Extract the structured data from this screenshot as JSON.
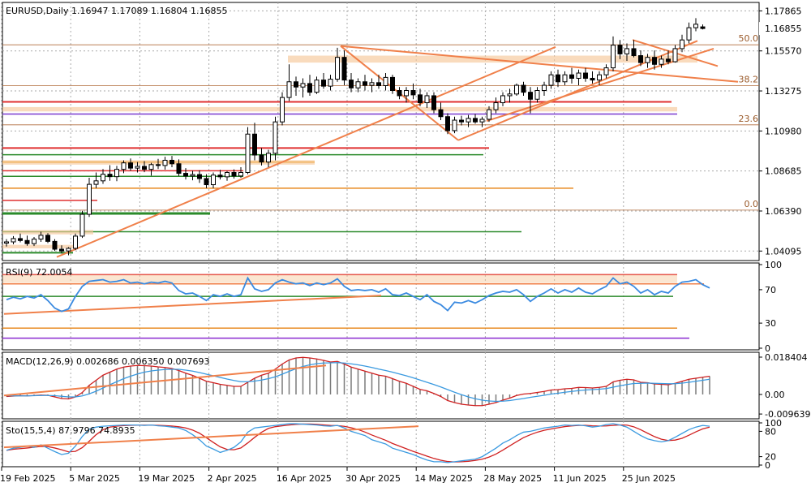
{
  "header": {
    "symbol": "EURUSD,Daily",
    "ohlc": "1.16947 1.17089 1.16804 1.16855"
  },
  "chart_data": {
    "type": "candlestick",
    "price_axis_labels": [
      "1.17865",
      "1.15570",
      "1.13275",
      "1.10980",
      "1.08685",
      "1.06390",
      "1.04095"
    ],
    "current_price_label": "1.16855",
    "fib_labels": [
      "50.0",
      "38.2",
      "23.6",
      "0.0"
    ],
    "x_axis_labels": [
      "19 Feb 2025",
      "5 Mar 2025",
      "19 Mar 2025",
      "2 Apr 2025",
      "16 Apr 2025",
      "30 Apr 2025",
      "14 May 2025",
      "28 May 2025",
      "11 Jun 2025",
      "25 Jun 2025"
    ],
    "candles": [
      [
        1.0455,
        1.0478,
        1.0435,
        1.0462
      ],
      [
        1.0462,
        1.0495,
        1.0448,
        1.0481
      ],
      [
        1.0481,
        1.051,
        1.046,
        1.047
      ],
      [
        1.047,
        1.0498,
        1.044,
        1.0452
      ],
      [
        1.0452,
        1.049,
        1.0438,
        1.0478
      ],
      [
        1.0478,
        1.052,
        1.0462,
        1.05
      ],
      [
        1.05,
        1.0512,
        1.0455,
        1.0465
      ],
      [
        1.0465,
        1.0478,
        1.041,
        1.042
      ],
      [
        1.042,
        1.0442,
        1.0395,
        1.041
      ],
      [
        1.041,
        1.0432,
        1.0385,
        1.0425
      ],
      [
        1.0425,
        1.051,
        1.0415,
        1.0495
      ],
      [
        1.0495,
        1.064,
        1.0485,
        1.062
      ],
      [
        1.062,
        1.083,
        1.0605,
        1.0792
      ],
      [
        1.0792,
        1.086,
        1.077,
        1.0812
      ],
      [
        1.0812,
        1.088,
        1.0795,
        1.085
      ],
      [
        1.085,
        1.0902,
        1.0812,
        1.0836
      ],
      [
        1.0836,
        1.0898,
        1.081,
        1.0878
      ],
      [
        1.0878,
        1.093,
        1.0856,
        1.0915
      ],
      [
        1.0915,
        1.094,
        1.087,
        1.0885
      ],
      [
        1.0885,
        1.092,
        1.086,
        1.0895
      ],
      [
        1.0895,
        1.0925,
        1.0862,
        1.0878
      ],
      [
        1.0878,
        1.0915,
        1.0842,
        1.0905
      ],
      [
        1.0905,
        1.0938,
        1.088,
        1.09
      ],
      [
        1.09,
        1.095,
        1.0876,
        1.093
      ],
      [
        1.093,
        1.0955,
        1.089,
        1.091
      ],
      [
        1.091,
        1.0935,
        1.084,
        1.0855
      ],
      [
        1.0855,
        1.0885,
        1.082,
        1.084
      ],
      [
        1.084,
        1.087,
        1.0815,
        1.0848
      ],
      [
        1.0848,
        1.0872,
        1.08,
        1.0825
      ],
      [
        1.0825,
        1.085,
        1.077,
        1.079
      ],
      [
        1.079,
        1.086,
        1.077,
        1.0845
      ],
      [
        1.0845,
        1.0875,
        1.082,
        1.0835
      ],
      [
        1.0835,
        1.0868,
        1.0812,
        1.086
      ],
      [
        1.086,
        1.0878,
        1.0825,
        1.084
      ],
      [
        1.084,
        1.089,
        1.083,
        1.086
      ],
      [
        1.086,
        1.112,
        1.085,
        1.108
      ],
      [
        1.108,
        1.1145,
        1.093,
        1.096
      ],
      [
        1.096,
        1.1,
        1.09,
        1.092
      ],
      [
        1.092,
        1.099,
        1.089,
        1.097
      ],
      [
        1.097,
        1.118,
        1.093,
        1.115
      ],
      [
        1.115,
        1.132,
        1.113,
        1.129
      ],
      [
        1.129,
        1.148,
        1.127,
        1.138
      ],
      [
        1.138,
        1.141,
        1.13,
        1.135
      ],
      [
        1.135,
        1.14,
        1.129,
        1.137
      ],
      [
        1.137,
        1.142,
        1.13,
        1.132
      ],
      [
        1.132,
        1.141,
        1.131,
        1.139
      ],
      [
        1.139,
        1.143,
        1.134,
        1.1355
      ],
      [
        1.1355,
        1.142,
        1.133,
        1.1395
      ],
      [
        1.1395,
        1.1575,
        1.138,
        1.152
      ],
      [
        1.152,
        1.156,
        1.136,
        1.139
      ],
      [
        1.139,
        1.143,
        1.132,
        1.1345
      ],
      [
        1.1345,
        1.14,
        1.132,
        1.138
      ],
      [
        1.138,
        1.142,
        1.133,
        1.136
      ],
      [
        1.136,
        1.14,
        1.132,
        1.1375
      ],
      [
        1.1375,
        1.142,
        1.134,
        1.1358
      ],
      [
        1.1358,
        1.143,
        1.133,
        1.1405
      ],
      [
        1.1405,
        1.142,
        1.131,
        1.133
      ],
      [
        1.133,
        1.135,
        1.128,
        1.13
      ],
      [
        1.13,
        1.135,
        1.126,
        1.133
      ],
      [
        1.133,
        1.137,
        1.128,
        1.1305
      ],
      [
        1.1305,
        1.134,
        1.124,
        1.126
      ],
      [
        1.126,
        1.132,
        1.123,
        1.13
      ],
      [
        1.13,
        1.132,
        1.12,
        1.122
      ],
      [
        1.122,
        1.126,
        1.116,
        1.118
      ],
      [
        1.118,
        1.12,
        1.108,
        1.11
      ],
      [
        1.11,
        1.118,
        1.1085,
        1.116
      ],
      [
        1.116,
        1.1185,
        1.113,
        1.115
      ],
      [
        1.115,
        1.119,
        1.112,
        1.117
      ],
      [
        1.117,
        1.1195,
        1.114,
        1.115
      ],
      [
        1.115,
        1.118,
        1.112,
        1.1165
      ],
      [
        1.1165,
        1.124,
        1.115,
        1.122
      ],
      [
        1.122,
        1.129,
        1.12,
        1.126
      ],
      [
        1.126,
        1.132,
        1.124,
        1.13
      ],
      [
        1.13,
        1.134,
        1.126,
        1.131
      ],
      [
        1.131,
        1.137,
        1.13,
        1.136
      ],
      [
        1.136,
        1.138,
        1.13,
        1.132
      ],
      [
        1.132,
        1.135,
        1.12,
        1.128
      ],
      [
        1.128,
        1.135,
        1.126,
        1.133
      ],
      [
        1.133,
        1.138,
        1.13,
        1.136
      ],
      [
        1.136,
        1.144,
        1.134,
        1.142
      ],
      [
        1.142,
        1.145,
        1.135,
        1.138
      ],
      [
        1.138,
        1.144,
        1.136,
        1.142
      ],
      [
        1.142,
        1.146,
        1.137,
        1.14
      ],
      [
        1.14,
        1.145,
        1.136,
        1.143
      ],
      [
        1.143,
        1.146,
        1.138,
        1.14
      ],
      [
        1.14,
        1.144,
        1.137,
        1.139
      ],
      [
        1.139,
        1.144,
        1.136,
        1.142
      ],
      [
        1.142,
        1.148,
        1.14,
        1.146
      ],
      [
        1.146,
        1.164,
        1.144,
        1.159
      ],
      [
        1.159,
        1.162,
        1.151,
        1.154
      ],
      [
        1.154,
        1.16,
        1.15,
        1.157
      ],
      [
        1.157,
        1.162,
        1.152,
        1.153
      ],
      [
        1.153,
        1.156,
        1.147,
        1.149
      ],
      [
        1.149,
        1.154,
        1.146,
        1.152
      ],
      [
        1.152,
        1.156,
        1.145,
        1.148
      ],
      [
        1.148,
        1.153,
        1.146,
        1.151
      ],
      [
        1.151,
        1.156,
        1.148,
        1.1495
      ],
      [
        1.1495,
        1.159,
        1.149,
        1.157
      ],
      [
        1.157,
        1.165,
        1.155,
        1.162
      ],
      [
        1.162,
        1.172,
        1.16,
        1.169
      ],
      [
        1.169,
        1.1745,
        1.167,
        1.171
      ],
      [
        1.1695,
        1.1709,
        1.168,
        1.16855
      ]
    ],
    "rsi": {
      "label": "RSI(9) 72.0054",
      "axis_labels": [
        "100",
        "70",
        "30",
        "0"
      ],
      "levels": [
        100,
        70,
        30,
        0
      ],
      "values": [
        58,
        61,
        59,
        62,
        60,
        64,
        57,
        48,
        44,
        47,
        62,
        74,
        80,
        81,
        82,
        79,
        80,
        82,
        78,
        79,
        77,
        79,
        78,
        80,
        78,
        69,
        65,
        66,
        62,
        57,
        64,
        62,
        65,
        62,
        64,
        84,
        71,
        68,
        70,
        78,
        82,
        79,
        77,
        78,
        75,
        78,
        76,
        78,
        83,
        74,
        69,
        70,
        69,
        70,
        67,
        71,
        64,
        63,
        66,
        62,
        58,
        64,
        56,
        52,
        45,
        55,
        54,
        57,
        54,
        58,
        63,
        66,
        68,
        67,
        70,
        64,
        56,
        62,
        66,
        71,
        66,
        70,
        67,
        72,
        67,
        65,
        70,
        74,
        84,
        77,
        79,
        74,
        66,
        70,
        64,
        68,
        66,
        74,
        79,
        80,
        82,
        76,
        72
      ]
    },
    "macd": {
      "label": "MACD(12,26,9) 0.002686 0.006350 0.007693",
      "axis_labels": [
        "0.018404",
        "0.00",
        "-0.009639"
      ],
      "ylim": [
        -0.0112,
        0.02
      ],
      "main": [
        -0.001,
        -0.0008,
        -0.0006,
        -0.0007,
        -0.0005,
        -0.0003,
        -0.0004,
        -0.0012,
        -0.002,
        -0.0022,
        -0.0012,
        0.001,
        0.0045,
        0.007,
        0.0095,
        0.011,
        0.0125,
        0.0135,
        0.014,
        0.0143,
        0.0142,
        0.014,
        0.0136,
        0.0133,
        0.0128,
        0.0118,
        0.0105,
        0.0094,
        0.008,
        0.0065,
        0.0058,
        0.005,
        0.0045,
        0.004,
        0.004,
        0.006,
        0.008,
        0.0095,
        0.0105,
        0.0125,
        0.015,
        0.017,
        0.018,
        0.0183,
        0.018,
        0.0175,
        0.0168,
        0.016,
        0.0163,
        0.015,
        0.0135,
        0.0125,
        0.0115,
        0.0105,
        0.0095,
        0.009,
        0.0078,
        0.0065,
        0.0055,
        0.004,
        0.0025,
        0.0018,
        0.0005,
        -0.001,
        -0.003,
        -0.004,
        -0.0048,
        -0.0052,
        -0.0055,
        -0.0055,
        -0.0048,
        -0.004,
        -0.0028,
        -0.0018,
        -0.0005,
        0.0002,
        0.0005,
        0.001,
        0.0015,
        0.0022,
        0.0024,
        0.0028,
        0.003,
        0.0035,
        0.0034,
        0.0032,
        0.0035,
        0.004,
        0.0062,
        0.007,
        0.0075,
        0.0072,
        0.006,
        0.0058,
        0.0052,
        0.005,
        0.0048,
        0.0055,
        0.0065,
        0.0075,
        0.008,
        0.0085,
        0.009
      ],
      "signal": [
        -0.0006,
        -0.0007,
        -0.0007,
        -0.0007,
        -0.0006,
        -0.0005,
        -0.0005,
        -0.0006,
        -0.0009,
        -0.0012,
        -0.0012,
        -0.0007,
        0.0003,
        0.0016,
        0.0032,
        0.0048,
        0.0063,
        0.0078,
        0.009,
        0.0101,
        0.011,
        0.0116,
        0.012,
        0.0123,
        0.0124,
        0.0124,
        0.012,
        0.0115,
        0.0108,
        0.01,
        0.0092,
        0.0084,
        0.0076,
        0.0069,
        0.0063,
        0.0063,
        0.0066,
        0.0071,
        0.0078,
        0.0087,
        0.01,
        0.0114,
        0.0127,
        0.0138,
        0.0146,
        0.0152,
        0.0155,
        0.0156,
        0.0157,
        0.0155,
        0.0151,
        0.0146,
        0.014,
        0.0133,
        0.0125,
        0.0118,
        0.011,
        0.0101,
        0.0092,
        0.0082,
        0.0071,
        0.006,
        0.0049,
        0.0037,
        0.0024,
        0.0011,
        -0.0001,
        -0.0012,
        -0.0021,
        -0.0028,
        -0.0032,
        -0.0034,
        -0.0033,
        -0.003,
        -0.0025,
        -0.002,
        -0.0014,
        -0.0009,
        -0.0004,
        0.0002,
        0.0006,
        0.0011,
        0.0015,
        0.0019,
        0.0022,
        0.0024,
        0.0026,
        0.0029,
        0.0036,
        0.0043,
        0.0049,
        0.0054,
        0.0055,
        0.0056,
        0.0055,
        0.0054,
        0.0053,
        0.0053,
        0.0056,
        0.006,
        0.0065,
        0.007,
        0.0075
      ]
    },
    "stochastic": {
      "label": "Sto(15,5,4) 87.9796 74.8935",
      "axis_labels": [
        "100",
        "80",
        "20",
        "0"
      ],
      "k": [
        35,
        40,
        42,
        45,
        42,
        48,
        40,
        32,
        25,
        28,
        45,
        68,
        85,
        90,
        92,
        93,
        94,
        95,
        95,
        95,
        94,
        95,
        93,
        92,
        90,
        88,
        82,
        72,
        60,
        45,
        38,
        30,
        35,
        42,
        55,
        78,
        88,
        90,
        92,
        94,
        96,
        98,
        98,
        97,
        96,
        95,
        93,
        92,
        94,
        88,
        80,
        75,
        70,
        60,
        55,
        50,
        40,
        35,
        30,
        25,
        18,
        12,
        8,
        8,
        6,
        8,
        10,
        12,
        14,
        20,
        30,
        40,
        52,
        60,
        70,
        78,
        80,
        84,
        88,
        90,
        92,
        95,
        94,
        95,
        93,
        90,
        92,
        96,
        98,
        95,
        90,
        80,
        70,
        62,
        58,
        55,
        58,
        66,
        75,
        84,
        90,
        94,
        92
      ]
    },
    "price_ylim": [
      1.0355,
      1.1835
    ]
  }
}
